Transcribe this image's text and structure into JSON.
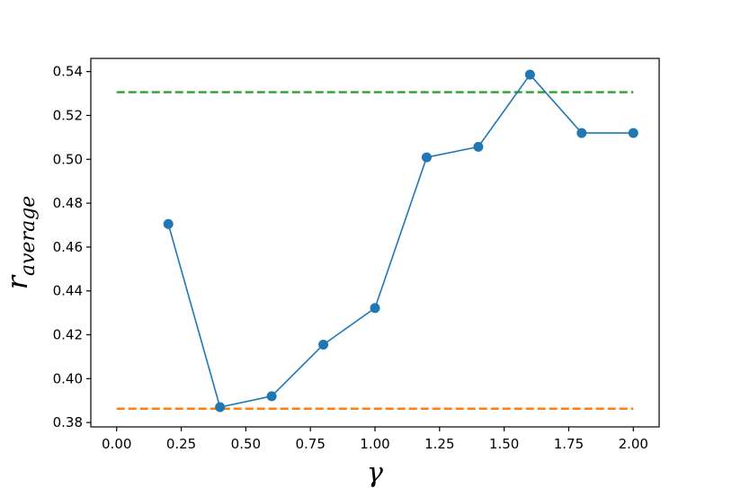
{
  "chart_data": {
    "type": "line",
    "xlabel": "γ",
    "ylabel_main": "r",
    "ylabel_sub": "average",
    "xlim": [
      -0.1,
      2.1
    ],
    "ylim": [
      0.378,
      0.546
    ],
    "xticks": [
      0.0,
      0.25,
      0.5,
      0.75,
      1.0,
      1.25,
      1.5,
      1.75,
      2.0
    ],
    "xtick_labels": [
      "0.00",
      "0.25",
      "0.50",
      "0.75",
      "1.00",
      "1.25",
      "1.50",
      "1.75",
      "2.00"
    ],
    "yticks": [
      0.38,
      0.4,
      0.42,
      0.44,
      0.46,
      0.48,
      0.5,
      0.52,
      0.54
    ],
    "ytick_labels": [
      "0.38",
      "0.40",
      "0.42",
      "0.44",
      "0.46",
      "0.48",
      "0.50",
      "0.52",
      "0.54"
    ],
    "grid": false,
    "series": [
      {
        "color": "#1f77b4",
        "style": "solid-line-with-circle-markers",
        "x": [
          0.2,
          0.4,
          0.6,
          0.8,
          1.0,
          1.2,
          1.4,
          1.6,
          1.8,
          2.0
        ],
        "y": [
          0.4705,
          0.387,
          0.392,
          0.4155,
          0.4322,
          0.5009,
          0.5057,
          0.5386,
          0.512,
          0.512
        ],
        "connect_from_index": [
          [
            0,
            1
          ],
          [
            1,
            2
          ],
          [
            2,
            3
          ],
          [
            3,
            4
          ],
          [
            4,
            5
          ],
          [
            5,
            6
          ],
          [
            6,
            7
          ],
          [
            7,
            8
          ],
          [
            8,
            9
          ]
        ]
      }
    ],
    "reference_lines": [
      {
        "color": "#2ca02c",
        "style": "dashed",
        "y": 0.5306,
        "x_range": [
          0.0,
          2.0
        ]
      },
      {
        "color": "#ff7f0e",
        "style": "dashed",
        "y": 0.3863,
        "x_range": [
          0.0,
          2.0
        ]
      }
    ]
  }
}
